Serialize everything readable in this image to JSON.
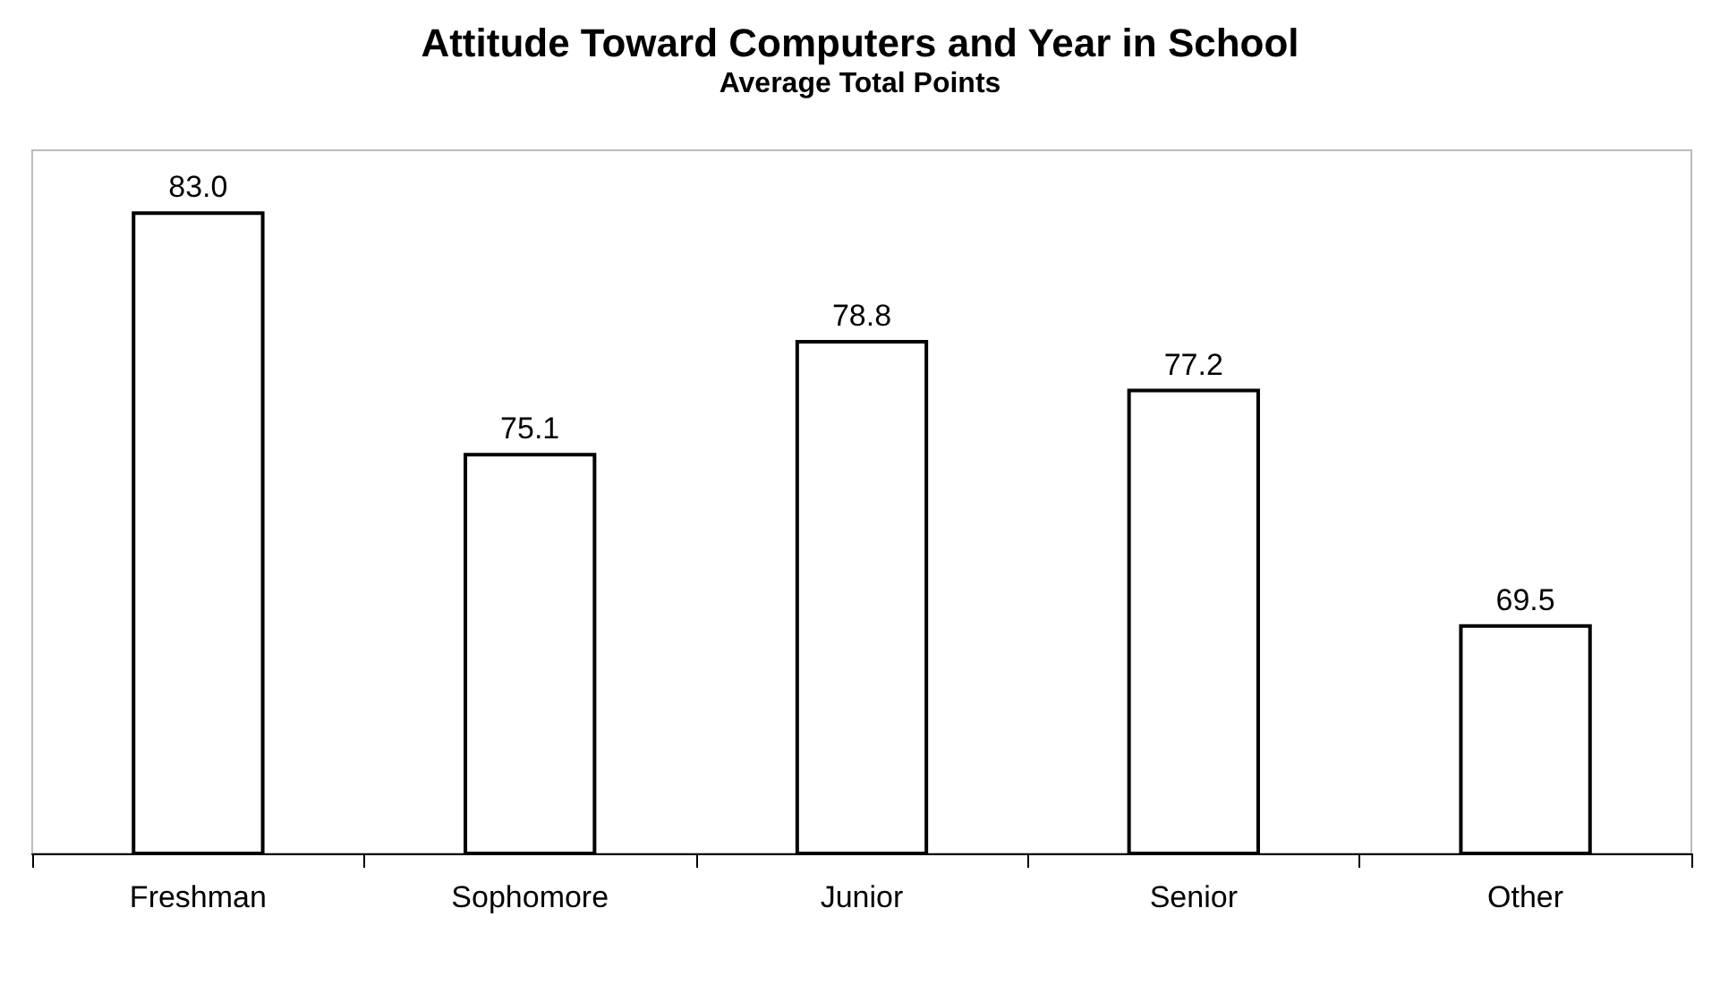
{
  "chart_data": {
    "type": "bar",
    "title": "Attitude Toward Computers and Year in School",
    "subtitle": "Average Total Points",
    "categories": [
      "Freshman",
      "Sophomore",
      "Junior",
      "Senior",
      "Other"
    ],
    "values": [
      83.0,
      75.1,
      78.8,
      77.2,
      69.5
    ],
    "value_labels": [
      "83.0",
      "75.1",
      "78.8",
      "77.2",
      "69.5"
    ],
    "color": "#ffffff",
    "ylim": [
      62,
      85
    ],
    "tick_labels": "x",
    "grid": false
  }
}
